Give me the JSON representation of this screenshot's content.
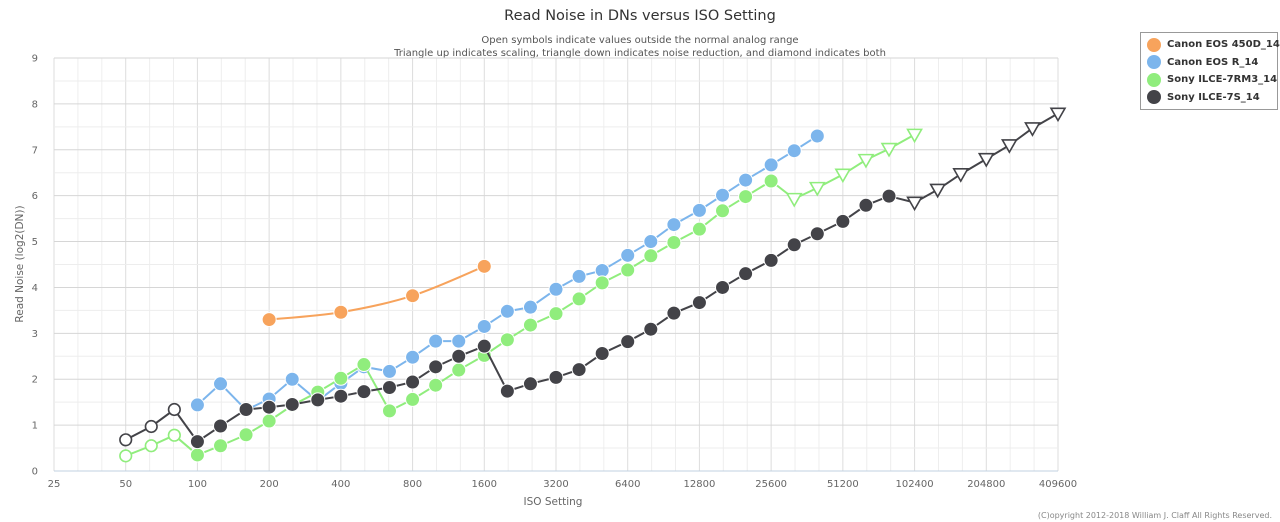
{
  "chart_data": {
    "type": "line",
    "title": "Read Noise in DNs versus ISO Setting",
    "subtitle": [
      "Open symbols indicate values outside the normal analog range",
      "Triangle up indicates scaling, triangle down indicates noise reduction, and diamond indicates both"
    ],
    "xlabel": "ISO Setting",
    "ylabel": "Read Noise (log2(DN))",
    "x_scale": "log2",
    "xlim": [
      25,
      409600
    ],
    "ylim": [
      0,
      9
    ],
    "x_ticks": [
      25,
      50,
      100,
      200,
      400,
      800,
      1600,
      3200,
      6400,
      12800,
      25600,
      51200,
      102400,
      204800,
      409600
    ],
    "x_tick_labels": [
      "25",
      "50",
      "100",
      "200",
      "400",
      "800",
      "1600",
      "3200",
      "6400",
      "12800",
      "25600",
      "51200",
      "102400",
      "204800",
      "409600"
    ],
    "y_ticks": [
      0,
      1,
      2,
      3,
      4,
      5,
      6,
      7,
      8,
      9
    ],
    "y_tick_labels": [
      "0",
      "1",
      "2",
      "3",
      "4",
      "5",
      "6",
      "7",
      "8",
      "9"
    ],
    "grid": true,
    "legend_position": "top-right",
    "copyright": "(C)opyright 2012-2018 William J. Claff All Rights Reserved.",
    "series": [
      {
        "name": "Canon EOS 450D_14",
        "color": "#f7a35c",
        "smooth": true,
        "points": [
          {
            "x": 200,
            "y": 3.3,
            "marker": "filled"
          },
          {
            "x": 400,
            "y": 3.46,
            "marker": "filled"
          },
          {
            "x": 800,
            "y": 3.82,
            "marker": "filled"
          },
          {
            "x": 1600,
            "y": 4.46,
            "marker": "filled"
          }
        ]
      },
      {
        "name": "Canon EOS R_14",
        "color": "#7cb5ec",
        "smooth": false,
        "points": [
          {
            "x": 100,
            "y": 1.44,
            "marker": "filled"
          },
          {
            "x": 125,
            "y": 1.9,
            "marker": "filled"
          },
          {
            "x": 160,
            "y": 1.33,
            "marker": "filled"
          },
          {
            "x": 200,
            "y": 1.57,
            "marker": "filled"
          },
          {
            "x": 250,
            "y": 2.0,
            "marker": "filled"
          },
          {
            "x": 320,
            "y": 1.53,
            "marker": "filled"
          },
          {
            "x": 400,
            "y": 1.91,
            "marker": "filled"
          },
          {
            "x": 500,
            "y": 2.27,
            "marker": "filled"
          },
          {
            "x": 640,
            "y": 2.17,
            "marker": "filled"
          },
          {
            "x": 800,
            "y": 2.48,
            "marker": "filled"
          },
          {
            "x": 1000,
            "y": 2.83,
            "marker": "filled"
          },
          {
            "x": 1250,
            "y": 2.83,
            "marker": "filled"
          },
          {
            "x": 1600,
            "y": 3.15,
            "marker": "filled"
          },
          {
            "x": 2000,
            "y": 3.48,
            "marker": "filled"
          },
          {
            "x": 2500,
            "y": 3.57,
            "marker": "filled"
          },
          {
            "x": 3200,
            "y": 3.96,
            "marker": "filled"
          },
          {
            "x": 4000,
            "y": 4.24,
            "marker": "filled"
          },
          {
            "x": 5000,
            "y": 4.37,
            "marker": "filled"
          },
          {
            "x": 6400,
            "y": 4.7,
            "marker": "filled"
          },
          {
            "x": 8000,
            "y": 5.0,
            "marker": "filled"
          },
          {
            "x": 10000,
            "y": 5.37,
            "marker": "filled"
          },
          {
            "x": 12800,
            "y": 5.68,
            "marker": "filled"
          },
          {
            "x": 16000,
            "y": 6.01,
            "marker": "filled"
          },
          {
            "x": 20000,
            "y": 6.34,
            "marker": "filled"
          },
          {
            "x": 25600,
            "y": 6.67,
            "marker": "filled"
          },
          {
            "x": 32000,
            "y": 6.98,
            "marker": "filled"
          },
          {
            "x": 40000,
            "y": 7.3,
            "marker": "filled"
          }
        ]
      },
      {
        "name": "Sony ILCE-7RM3_14",
        "color": "#90ed7d",
        "smooth": false,
        "points": [
          {
            "x": 50,
            "y": 0.33,
            "marker": "open"
          },
          {
            "x": 64,
            "y": 0.55,
            "marker": "open"
          },
          {
            "x": 80,
            "y": 0.78,
            "marker": "open"
          },
          {
            "x": 100,
            "y": 0.35,
            "marker": "filled"
          },
          {
            "x": 125,
            "y": 0.55,
            "marker": "filled"
          },
          {
            "x": 160,
            "y": 0.79,
            "marker": "filled"
          },
          {
            "x": 200,
            "y": 1.09,
            "marker": "filled"
          },
          {
            "x": 250,
            "y": 1.43,
            "marker": "filled"
          },
          {
            "x": 320,
            "y": 1.72,
            "marker": "filled"
          },
          {
            "x": 400,
            "y": 2.02,
            "marker": "filled"
          },
          {
            "x": 500,
            "y": 2.32,
            "marker": "filled"
          },
          {
            "x": 640,
            "y": 1.31,
            "marker": "filled"
          },
          {
            "x": 800,
            "y": 1.56,
            "marker": "filled"
          },
          {
            "x": 1000,
            "y": 1.87,
            "marker": "filled"
          },
          {
            "x": 1250,
            "y": 2.2,
            "marker": "filled"
          },
          {
            "x": 1600,
            "y": 2.52,
            "marker": "filled"
          },
          {
            "x": 2000,
            "y": 2.86,
            "marker": "filled"
          },
          {
            "x": 2500,
            "y": 3.18,
            "marker": "filled"
          },
          {
            "x": 3200,
            "y": 3.43,
            "marker": "filled"
          },
          {
            "x": 4000,
            "y": 3.75,
            "marker": "filled"
          },
          {
            "x": 5000,
            "y": 4.1,
            "marker": "filled"
          },
          {
            "x": 6400,
            "y": 4.38,
            "marker": "filled"
          },
          {
            "x": 8000,
            "y": 4.69,
            "marker": "filled"
          },
          {
            "x": 10000,
            "y": 4.98,
            "marker": "filled"
          },
          {
            "x": 12800,
            "y": 5.27,
            "marker": "filled"
          },
          {
            "x": 16000,
            "y": 5.67,
            "marker": "filled"
          },
          {
            "x": 20000,
            "y": 5.98,
            "marker": "filled"
          },
          {
            "x": 25600,
            "y": 6.32,
            "marker": "filled"
          },
          {
            "x": 32000,
            "y": 5.93,
            "marker": "triangle-down"
          },
          {
            "x": 40000,
            "y": 6.17,
            "marker": "triangle-down"
          },
          {
            "x": 51200,
            "y": 6.46,
            "marker": "triangle-down"
          },
          {
            "x": 64000,
            "y": 6.78,
            "marker": "triangle-down"
          },
          {
            "x": 80000,
            "y": 7.02,
            "marker": "triangle-down"
          },
          {
            "x": 102400,
            "y": 7.33,
            "marker": "triangle-down"
          }
        ]
      },
      {
        "name": "Sony ILCE-7S_14",
        "color": "#434348",
        "smooth": false,
        "points": [
          {
            "x": 50,
            "y": 0.68,
            "marker": "open"
          },
          {
            "x": 64,
            "y": 0.97,
            "marker": "open"
          },
          {
            "x": 80,
            "y": 1.34,
            "marker": "open"
          },
          {
            "x": 100,
            "y": 0.64,
            "marker": "filled"
          },
          {
            "x": 125,
            "y": 0.98,
            "marker": "filled"
          },
          {
            "x": 160,
            "y": 1.34,
            "marker": "filled"
          },
          {
            "x": 200,
            "y": 1.39,
            "marker": "filled"
          },
          {
            "x": 250,
            "y": 1.45,
            "marker": "filled"
          },
          {
            "x": 320,
            "y": 1.55,
            "marker": "filled"
          },
          {
            "x": 400,
            "y": 1.63,
            "marker": "filled"
          },
          {
            "x": 500,
            "y": 1.73,
            "marker": "filled"
          },
          {
            "x": 640,
            "y": 1.82,
            "marker": "filled"
          },
          {
            "x": 800,
            "y": 1.94,
            "marker": "filled"
          },
          {
            "x": 1000,
            "y": 2.27,
            "marker": "filled"
          },
          {
            "x": 1250,
            "y": 2.5,
            "marker": "filled"
          },
          {
            "x": 1600,
            "y": 2.72,
            "marker": "filled"
          },
          {
            "x": 2000,
            "y": 1.74,
            "marker": "filled"
          },
          {
            "x": 2500,
            "y": 1.9,
            "marker": "filled"
          },
          {
            "x": 3200,
            "y": 2.04,
            "marker": "filled"
          },
          {
            "x": 4000,
            "y": 2.21,
            "marker": "filled"
          },
          {
            "x": 5000,
            "y": 2.56,
            "marker": "filled"
          },
          {
            "x": 6400,
            "y": 2.82,
            "marker": "filled"
          },
          {
            "x": 8000,
            "y": 3.09,
            "marker": "filled"
          },
          {
            "x": 10000,
            "y": 3.44,
            "marker": "filled"
          },
          {
            "x": 12800,
            "y": 3.67,
            "marker": "filled"
          },
          {
            "x": 16000,
            "y": 4.0,
            "marker": "filled"
          },
          {
            "x": 20000,
            "y": 4.3,
            "marker": "filled"
          },
          {
            "x": 25600,
            "y": 4.59,
            "marker": "filled"
          },
          {
            "x": 32000,
            "y": 4.93,
            "marker": "filled"
          },
          {
            "x": 40000,
            "y": 5.17,
            "marker": "filled"
          },
          {
            "x": 51200,
            "y": 5.44,
            "marker": "filled"
          },
          {
            "x": 64000,
            "y": 5.79,
            "marker": "filled"
          },
          {
            "x": 80000,
            "y": 5.99,
            "marker": "filled"
          },
          {
            "x": 102400,
            "y": 5.85,
            "marker": "triangle-down"
          },
          {
            "x": 128000,
            "y": 6.13,
            "marker": "triangle-down"
          },
          {
            "x": 160000,
            "y": 6.47,
            "marker": "triangle-down"
          },
          {
            "x": 204800,
            "y": 6.8,
            "marker": "triangle-down"
          },
          {
            "x": 256000,
            "y": 7.1,
            "marker": "triangle-down"
          },
          {
            "x": 320000,
            "y": 7.47,
            "marker": "triangle-down"
          },
          {
            "x": 409600,
            "y": 7.79,
            "marker": "triangle-down"
          }
        ]
      }
    ]
  }
}
